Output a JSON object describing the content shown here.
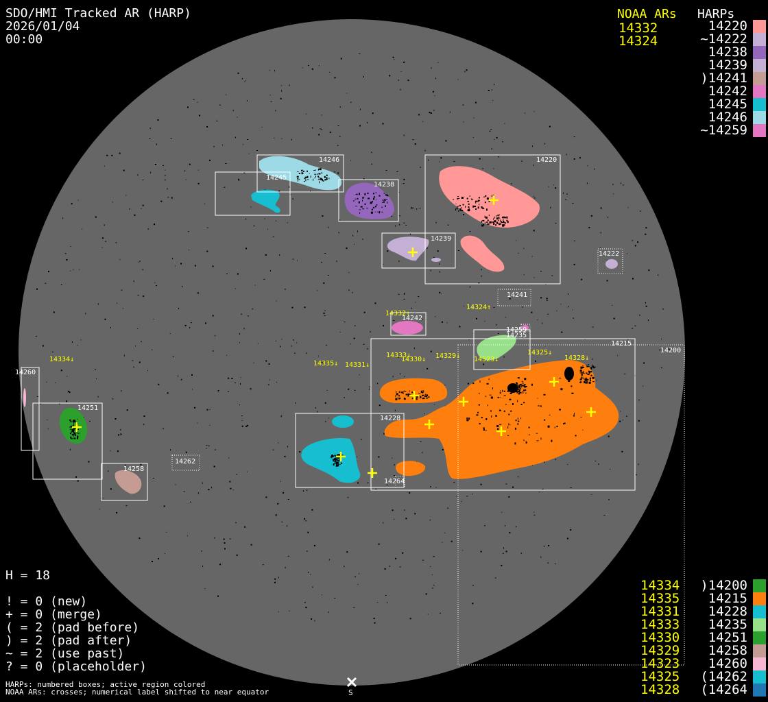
{
  "header": {
    "title": "SDO/HMI Tracked AR (HARP)",
    "date": "2026/01/04",
    "time": "00:00"
  },
  "legend_top": {
    "noaa_title": "NOAA ARs",
    "noaa": [
      "14332",
      "14324"
    ],
    "harp_title": "HARPs",
    "harps": [
      {
        "label": " 14220",
        "color": "#ff9896"
      },
      {
        "label": "~14222",
        "color": "#c5b0d5"
      },
      {
        "label": " 14238",
        "color": "#9467bd"
      },
      {
        "label": " 14239",
        "color": "#c5b0d5"
      },
      {
        "label": ")14241",
        "color": "#c49c94"
      },
      {
        "label": " 14242",
        "color": "#e377c2"
      },
      {
        "label": " 14245",
        "color": "#17becf"
      },
      {
        "label": " 14246",
        "color": "#9edae5"
      },
      {
        "label": "~14259",
        "color": "#e377c2"
      }
    ]
  },
  "legend_bottom": {
    "noaa": [
      "14334",
      "14335",
      "14331",
      "14333",
      "14330",
      "14329",
      "14323",
      "14325",
      "14328"
    ],
    "harps": [
      {
        "label": ")14200",
        "color": "#2ca02c"
      },
      {
        "label": " 14215",
        "color": "#ff7f0e"
      },
      {
        "label": " 14228",
        "color": "#17becf"
      },
      {
        "label": " 14235",
        "color": "#98df8a"
      },
      {
        "label": " 14251",
        "color": "#2ca02c"
      },
      {
        "label": " 14258",
        "color": "#c49c94"
      },
      {
        "label": " 14260",
        "color": "#f7b6d2"
      },
      {
        "label": "(14262",
        "color": "#17becf"
      },
      {
        "label": "(14264",
        "color": "#1f77b4"
      }
    ]
  },
  "stats": {
    "h": "H = 18",
    "lines": [
      "! = 0 (new)",
      "+ = 0 (merge)",
      "( = 2 (pad before)",
      ") = 2 (pad after)",
      "~ = 2 (use past)",
      "? = 0 (placeholder)"
    ]
  },
  "footer": {
    "line1": "HARPs: numbered boxes; active region colored",
    "line2": "NOAA ARs: crosses; numerical label shifted to near equator",
    "south": "S"
  },
  "disk": {
    "disk_color": "#666666",
    "harp_boxes": {
      "h14246": "14246",
      "h14245": "14245",
      "h14238": "14238",
      "h14220": "14220",
      "h14239": "14239",
      "h14222": "14222",
      "h14241": "14241",
      "h14242": "14242",
      "h14259": "14259",
      "h14235": "14235",
      "h14215": "14215",
      "h14200": "14200",
      "h14228": "14228",
      "h14264": "14264",
      "h14260": "14260",
      "h14251": "14251",
      "h14258": "14258",
      "h14262": "14262"
    },
    "noaa_labels": {
      "n14332": "14332↑",
      "n14324": "14324↑",
      "n14334": "14334↓",
      "n14335": "14335↓",
      "n14331": "14331↓",
      "n14333": "14333↓",
      "n14330": "14330↓",
      "n14329": "14329↓",
      "n14323": "14323↓",
      "n14325": "14325↓",
      "n14328": "14328↓"
    }
  }
}
